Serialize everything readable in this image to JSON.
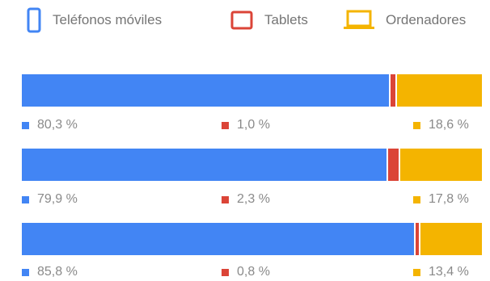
{
  "colors": {
    "mobile": "#4285F4",
    "tablet": "#DB4437",
    "computer": "#F4B400"
  },
  "legend": [
    {
      "key": "mobile",
      "label": "Teléfonos móviles",
      "icon": "smartphone-icon"
    },
    {
      "key": "tablet",
      "label": "Tablets",
      "icon": "tablet-icon"
    },
    {
      "key": "computer",
      "label": "Ordenadores",
      "icon": "laptop-icon"
    }
  ],
  "chart_data": {
    "type": "bar",
    "orientation": "horizontal",
    "stacked": true,
    "normalized_percent": true,
    "categories": [
      "",
      "",
      ""
    ],
    "series": [
      {
        "name": "Teléfonos móviles",
        "values": [
          80.3,
          79.9,
          85.8
        ],
        "labels": [
          "80,3 %",
          "79,9 %",
          "85,8 %"
        ]
      },
      {
        "name": "Tablets",
        "values": [
          1.0,
          2.3,
          0.8
        ],
        "labels": [
          "1,0 %",
          "2,3 %",
          "0,8 %"
        ]
      },
      {
        "name": "Ordenadores",
        "values": [
          18.6,
          17.8,
          13.4
        ],
        "labels": [
          "18,6 %",
          "17,8 %",
          "13,4 %"
        ]
      }
    ],
    "legend_position": "top",
    "grid": false,
    "xlim": [
      0,
      100
    ]
  }
}
